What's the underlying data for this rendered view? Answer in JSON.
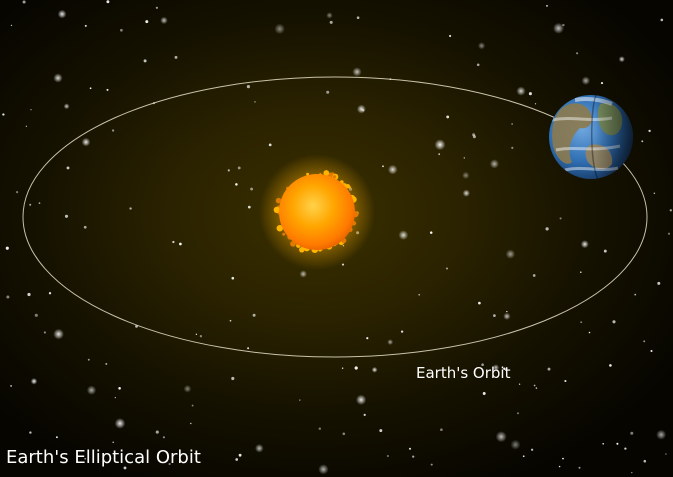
{
  "title": "Earth's Elliptical Orbit",
  "orbit_label": "Earth's Orbit",
  "colors": {
    "background": "#2a2200",
    "orbit_line": "#e8e0c8",
    "sun": "#ff9a00",
    "earth_ocean": "#2f6fb3",
    "text": "#ffffff"
  },
  "objects": {
    "sun": "sun",
    "earth": "earth",
    "orbit": "elliptical-orbit",
    "stars": "starfield"
  }
}
